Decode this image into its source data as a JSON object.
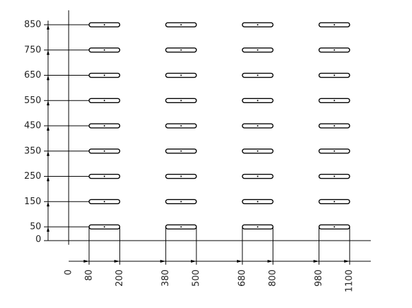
{
  "vertical_dimensions": {
    "values": [
      0,
      50,
      150,
      250,
      350,
      450,
      550,
      650,
      750,
      850
    ]
  },
  "horizontal_dimensions": {
    "values": [
      0,
      80,
      200,
      380,
      500,
      680,
      800,
      980,
      1100
    ]
  }
}
